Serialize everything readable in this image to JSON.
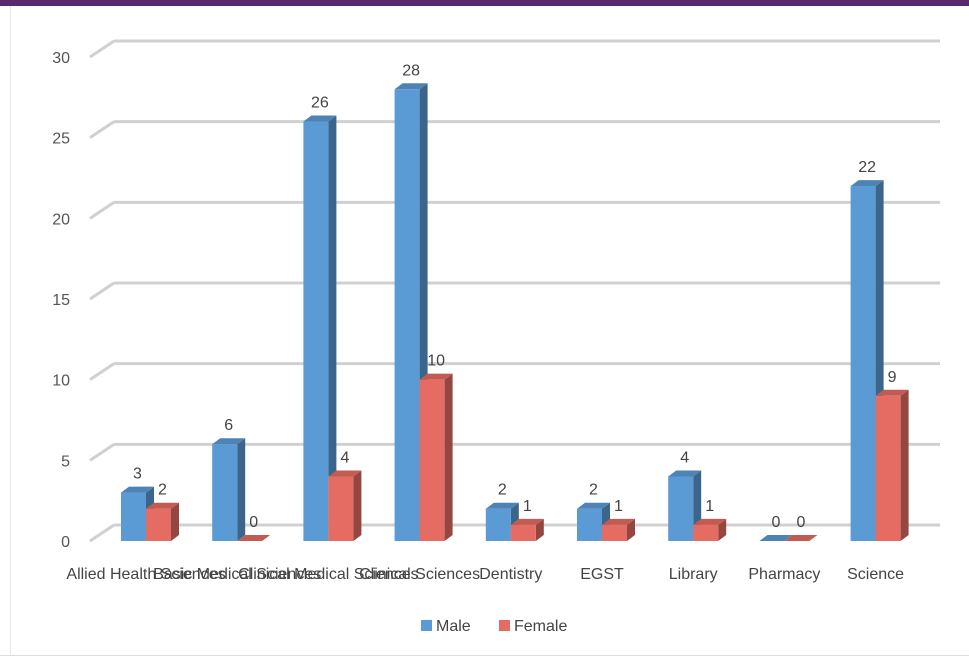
{
  "chart_data": {
    "type": "bar",
    "categories": [
      "Allied Health Sciences",
      "Basic Medical Sciences",
      "Clinical Medical Sciences",
      "Clinical Sciences",
      "Dentistry",
      "EGST",
      "Library",
      "Pharmacy",
      "Science"
    ],
    "series": [
      {
        "name": "Male",
        "values": [
          3,
          6,
          26,
          28,
          2,
          2,
          4,
          0,
          22
        ],
        "color": "#5b9bd5"
      },
      {
        "name": "Female",
        "values": [
          2,
          0,
          4,
          10,
          1,
          1,
          1,
          0,
          9
        ],
        "color": "#e46c62"
      }
    ],
    "y_ticks": [
      "0",
      "5",
      "10",
      "15",
      "20",
      "25",
      "30"
    ],
    "ylim": [
      0,
      30
    ],
    "grid": true,
    "legend": "bottom",
    "style": "3d-clustered-column"
  }
}
